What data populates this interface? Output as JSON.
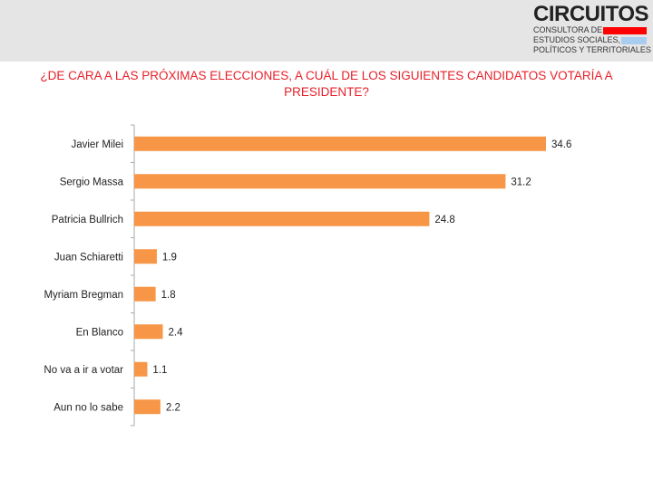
{
  "logo": {
    "name": "CIRCUITOS",
    "line1": "CONSULTORA DE",
    "line2": "ESTUDIOS SOCIALES,",
    "line3": "POLÍTICOS Y TERRITORIALES",
    "colors": [
      "#ff0000",
      "#a8cdf0",
      "#ffd21f"
    ]
  },
  "chart_data": {
    "type": "bar",
    "orientation": "horizontal",
    "title": "¿DE CARA A LAS PRÓXIMAS ELECCIONES, A CUÁL DE LOS SIGUIENTES CANDIDATOS VOTARÍA A PRESIDENTE?",
    "categories": [
      "Javier Milei",
      "Sergio Massa",
      "Patricia Bullrich",
      "Juan Schiaretti",
      "Myriam Bregman",
      "En Blanco",
      "No va a ir a votar",
      "Aun no lo sabe"
    ],
    "values": [
      34.6,
      31.2,
      24.8,
      1.9,
      1.8,
      2.4,
      1.1,
      2.2
    ],
    "bar_color": "#f79646",
    "xlim": [
      0,
      35
    ],
    "grid": false,
    "legend": "none"
  }
}
